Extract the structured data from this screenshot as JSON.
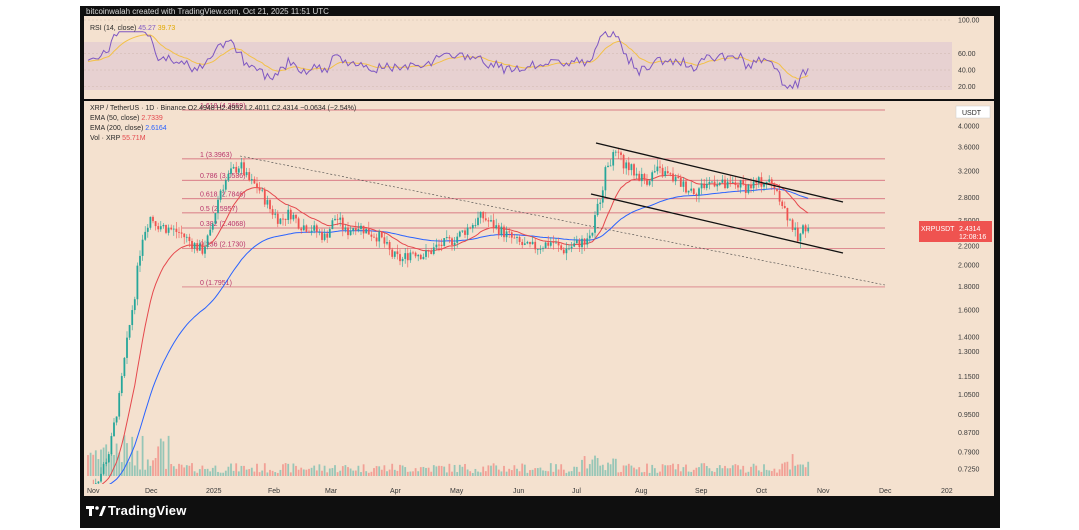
{
  "header": {
    "credit": "bitcoinwalah created with TradingView.com, Oct 21, 2025 11:51 UTC"
  },
  "footer": {
    "brand": "TradingView"
  },
  "colors": {
    "pane_bg": "#f4e1cf",
    "rsi_band": "#e6cfd0",
    "rsi_line": "#7e57c2",
    "rsi_ma": "#f3c147",
    "ema50": "#e5484d",
    "ema200": "#2962ff",
    "fib_line": "#d05a6e",
    "up_candle": "#26a69a",
    "down_candle": "#ef5350",
    "channel": "#111111"
  },
  "rsi_pane": {
    "label_prefix": "RSI (14, close)",
    "value_rsi": "45.27",
    "value_ma": "39.73",
    "ticks": [
      "100.00",
      "60.00",
      "40.00",
      "20.00"
    ]
  },
  "legend": {
    "symbol": "XRP / TetherUS · 1D · Binance",
    "ohlc": "O2.4948  H2.4952  L2.4011  C2.4314  −0.0634 (−2.54%)",
    "ema50_label": "EMA (50, close)",
    "ema50_value": "2.7339",
    "ema200_label": "EMA (200, close)",
    "ema200_value": "2.6164",
    "vol_label": "Vol · XRP",
    "vol_value": "55.71M"
  },
  "price_badge": {
    "currency": "USDT",
    "symbol": "XRPUSDT",
    "price": "2.4314",
    "countdown": "12:08:16"
  },
  "chart_data": {
    "type": "candlestick",
    "title": "XRP / TetherUS · 1D · Binance",
    "y_scale": "log",
    "y_ticks": [
      "4.0000",
      "3.6000",
      "3.2000",
      "2.8000",
      "2.5000",
      "2.2000",
      "2.0000",
      "1.8000",
      "1.6000",
      "1.4000",
      "1.3000",
      "1.1500",
      "1.0500",
      "0.9500",
      "0.8700",
      "0.7900",
      "0.7250"
    ],
    "x_ticks": [
      "Nov",
      "Dec",
      "2025",
      "Feb",
      "Mar",
      "Apr",
      "May",
      "Jun",
      "Jul",
      "Aug",
      "Sep",
      "Oct",
      "Nov",
      "Dec",
      "202"
    ],
    "fib_levels": [
      {
        "label": "1.618 (4.3659)",
        "price": 4.3659
      },
      {
        "label": "1 (3.3963)",
        "price": 3.3963
      },
      {
        "label": "0.786 (3.0536)",
        "price": 3.0536
      },
      {
        "label": "0.618 (2.7846)",
        "price": 2.7846
      },
      {
        "label": "0.5 (2.5957)",
        "price": 2.5957
      },
      {
        "label": "0.382 (2.4068)",
        "price": 2.4068
      },
      {
        "label": "0.236 (2.1730)",
        "price": 2.173
      },
      {
        "label": "0 (1.7951)",
        "price": 1.7951
      }
    ],
    "close_price": 2.4314,
    "ema50_last": 2.7339,
    "ema200_last": 2.6164,
    "volume_last": "55.71M",
    "rsi_last": 45.27,
    "rsi_ma_last": 39.73
  }
}
